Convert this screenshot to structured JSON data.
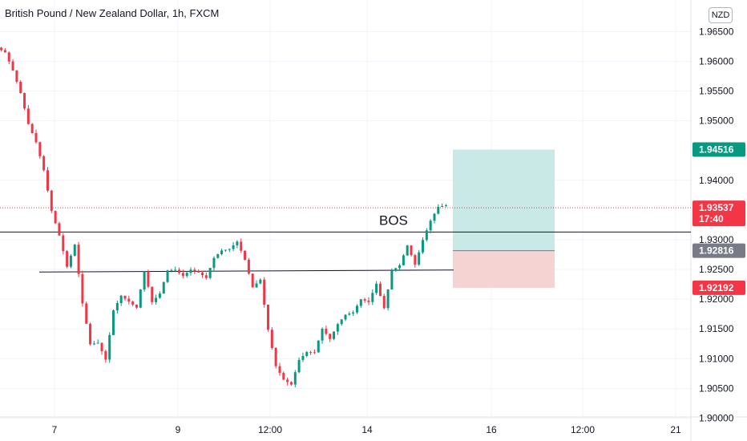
{
  "header": {
    "title": "British Pound / New Zealand Dollar, 1h, FXCM",
    "currency_badge": "NZD"
  },
  "chart_data": {
    "type": "candlestick",
    "symbol": "British Pound / New Zealand Dollar",
    "interval": "1h",
    "source": "FXCM",
    "ylim": [
      1.8975,
      1.9695
    ],
    "y_ticks": [
      "1.90000",
      "1.90500",
      "1.91000",
      "1.91500",
      "1.92000",
      "1.92500",
      "1.93000",
      "1.94000",
      "1.95000",
      "1.95500",
      "1.96000",
      "1.96500"
    ],
    "x_ticks": [
      "7",
      "9",
      "12:00",
      "14",
      "16",
      "12:00",
      "21"
    ],
    "price_labels": [
      {
        "value": "1.94516",
        "color": "#089981"
      },
      {
        "value": "1.93537",
        "sub": "17:40",
        "color": "#f23645"
      },
      {
        "value": "1.92816",
        "color": "#787b86"
      },
      {
        "value": "1.92192",
        "color": "#f23645"
      }
    ],
    "current_price": 1.93537,
    "position": {
      "target": 1.94516,
      "entry": 1.92816,
      "stop": 1.92192,
      "profit_color": "#c9e9e6",
      "loss_color": "#f6d3d3"
    },
    "levels": [
      {
        "price": 1.9313,
        "label": "BOS"
      },
      {
        "price": 1.9247
      }
    ],
    "annotation": "BOS",
    "bull_color": "#089981",
    "bear_color": "#f23645",
    "path": [
      [
        0,
        1.9615
      ],
      [
        0.6,
        1.959
      ],
      [
        1.2,
        1.9575
      ],
      [
        1.8,
        1.9555
      ],
      [
        2.4,
        1.953
      ],
      [
        3.0,
        1.95
      ],
      [
        3.6,
        1.947
      ],
      [
        4.0,
        1.9465
      ],
      [
        4.4,
        1.944
      ],
      [
        5.0,
        1.942
      ],
      [
        5.6,
        1.938
      ],
      [
        6.2,
        1.934
      ],
      [
        6.8,
        1.932
      ],
      [
        7.4,
        1.9285
      ],
      [
        8.0,
        1.926
      ],
      [
        8.6,
        1.9275
      ],
      [
        9.2,
        1.93
      ],
      [
        9.6,
        1.925
      ],
      [
        10.0,
        1.919
      ],
      [
        10.5,
        1.914
      ],
      [
        11.0,
        1.912
      ],
      [
        11.5,
        1.915
      ],
      [
        12.0,
        1.913
      ],
      [
        12.5,
        1.911
      ],
      [
        13.0,
        1.91
      ],
      [
        13.4,
        1.912
      ],
      [
        13.8,
        1.916
      ],
      [
        14.2,
        1.92
      ],
      [
        14.6,
        1.923
      ],
      [
        15.0,
        1.921
      ],
      [
        15.5,
        1.922
      ],
      [
        16.0,
        1.92
      ],
      [
        16.5,
        1.918
      ],
      [
        17.0,
        1.919
      ],
      [
        17.5,
        1.923
      ],
      [
        18.0,
        1.925
      ],
      [
        18.5,
        1.9235
      ],
      [
        19.0,
        1.92
      ],
      [
        19.5,
        1.918
      ],
      [
        20.0,
        1.921
      ],
      [
        20.5,
        1.923
      ],
      [
        21.0,
        1.925
      ],
      [
        21.5,
        1.924
      ],
      [
        22.0,
        1.9255
      ],
      [
        22.5,
        1.926
      ],
      [
        23.0,
        1.924
      ],
      [
        23.5,
        1.927
      ],
      [
        24.0,
        1.925
      ],
      [
        24.5,
        1.9235
      ],
      [
        25.0,
        1.924
      ],
      [
        25.5,
        1.9235
      ],
      [
        26.0,
        1.923
      ],
      [
        26.5,
        1.925
      ],
      [
        27.0,
        1.927
      ],
      [
        27.5,
        1.926
      ],
      [
        28.0,
        1.928
      ],
      [
        28.5,
        1.93
      ],
      [
        29.0,
        1.929
      ],
      [
        29.5,
        1.928
      ],
      [
        30.0,
        1.93
      ],
      [
        30.5,
        1.929
      ],
      [
        31.0,
        1.927
      ],
      [
        31.5,
        1.924
      ],
      [
        32.0,
        1.922
      ],
      [
        32.5,
        1.921
      ],
      [
        33.0,
        1.923
      ],
      [
        33.5,
        1.92
      ],
      [
        34.0,
        1.915
      ],
      [
        34.5,
        1.912
      ],
      [
        35.0,
        1.909
      ],
      [
        35.5,
        1.907
      ],
      [
        36.0,
        1.906
      ],
      [
        36.5,
        1.905
      ],
      [
        37.0,
        1.906
      ],
      [
        37.5,
        1.908
      ],
      [
        38.0,
        1.91
      ],
      [
        38.5,
        1.909
      ],
      [
        39.0,
        1.911
      ],
      [
        39.5,
        1.912
      ],
      [
        40.0,
        1.911
      ],
      [
        40.5,
        1.913
      ],
      [
        41.0,
        1.915
      ],
      [
        41.5,
        1.914
      ],
      [
        42.0,
        1.913
      ],
      [
        42.5,
        1.915
      ],
      [
        43.0,
        1.916
      ],
      [
        43.5,
        1.915
      ],
      [
        44.0,
        1.917
      ],
      [
        44.5,
        1.916
      ],
      [
        45.0,
        1.918
      ],
      [
        45.5,
        1.919
      ],
      [
        46.0,
        1.92
      ],
      [
        46.5,
        1.921
      ],
      [
        47.0,
        1.92
      ],
      [
        47.5,
        1.922
      ],
      [
        48.0,
        1.923
      ],
      [
        48.5,
        1.922
      ],
      [
        49.0,
        1.918
      ],
      [
        49.5,
        1.923
      ],
      [
        50.0,
        1.925
      ],
      [
        50.5,
        1.924
      ],
      [
        51.0,
        1.926
      ],
      [
        51.5,
        1.928
      ],
      [
        52.0,
        1.929
      ],
      [
        52.5,
        1.927
      ],
      [
        53.0,
        1.926
      ],
      [
        53.5,
        1.929
      ],
      [
        54.0,
        1.93
      ],
      [
        54.5,
        1.932
      ],
      [
        55.0,
        1.9335
      ],
      [
        55.5,
        1.935
      ],
      [
        56.0,
        1.936
      ],
      [
        56.4,
        1.9355
      ]
    ]
  }
}
